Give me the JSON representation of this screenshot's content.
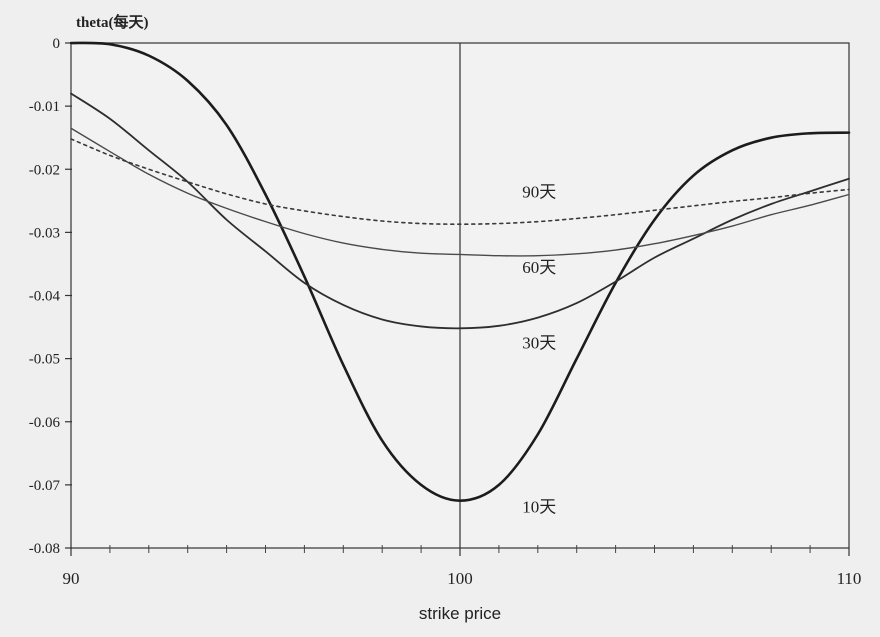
{
  "chart_data": {
    "type": "line",
    "title": "",
    "ylabel": "theta(每天)",
    "xlabel": "strike price",
    "xlim": [
      90,
      110
    ],
    "ylim": [
      -0.08,
      0
    ],
    "x_ticks": [
      90,
      100,
      110
    ],
    "x_tick_labels": [
      "90",
      "100",
      "110"
    ],
    "y_ticks": [
      0,
      -0.01,
      -0.02,
      -0.03,
      -0.04,
      -0.05,
      -0.06,
      -0.07,
      -0.08
    ],
    "y_tick_labels": [
      "0",
      "-0.01",
      "-0.02",
      "-0.03",
      "-0.04",
      "-0.05",
      "-0.06",
      "-0.07",
      "-0.08"
    ],
    "x_minor_step": 1,
    "grid": false,
    "vertical_reference_line": 100,
    "x": [
      90,
      91,
      92,
      93,
      94,
      95,
      96,
      97,
      98,
      99,
      100,
      101,
      102,
      103,
      104,
      105,
      106,
      107,
      108,
      109,
      110
    ],
    "series": [
      {
        "name": "10天",
        "style": "solid-heavy",
        "values": [
          0.0,
          -0.0002,
          -0.002,
          -0.006,
          -0.013,
          -0.024,
          -0.037,
          -0.051,
          -0.063,
          -0.07,
          -0.0725,
          -0.07,
          -0.062,
          -0.05,
          -0.038,
          -0.028,
          -0.021,
          -0.017,
          -0.015,
          -0.0143,
          -0.0142
        ]
      },
      {
        "name": "30天",
        "style": "solid",
        "values": [
          -0.008,
          -0.012,
          -0.017,
          -0.022,
          -0.028,
          -0.033,
          -0.038,
          -0.0415,
          -0.0438,
          -0.0449,
          -0.0452,
          -0.0448,
          -0.0435,
          -0.0412,
          -0.0378,
          -0.034,
          -0.031,
          -0.028,
          -0.0255,
          -0.0235,
          -0.0215
        ]
      },
      {
        "name": "60天",
        "style": "solid-light",
        "values": [
          -0.0135,
          -0.0172,
          -0.0208,
          -0.0238,
          -0.0262,
          -0.0283,
          -0.0302,
          -0.0317,
          -0.0327,
          -0.0333,
          -0.0335,
          -0.0337,
          -0.0337,
          -0.0334,
          -0.0328,
          -0.0318,
          -0.0305,
          -0.029,
          -0.0272,
          -0.0257,
          -0.024
        ]
      },
      {
        "name": "90天",
        "style": "dashed",
        "values": [
          -0.0152,
          -0.0178,
          -0.02,
          -0.022,
          -0.0239,
          -0.0255,
          -0.0266,
          -0.0275,
          -0.0282,
          -0.0286,
          -0.0287,
          -0.0286,
          -0.0283,
          -0.0278,
          -0.0272,
          -0.0265,
          -0.0258,
          -0.0251,
          -0.0245,
          -0.0238,
          -0.0232
        ]
      }
    ],
    "annotations": [
      {
        "text": "90天",
        "series": "90天",
        "x": 101.6,
        "y": -0.0245
      },
      {
        "text": "60天",
        "series": "60天",
        "x": 101.6,
        "y": -0.0364
      },
      {
        "text": "30天",
        "series": "30天",
        "x": 101.6,
        "y": -0.0484
      },
      {
        "text": "10天",
        "series": "10天",
        "x": 101.6,
        "y": -0.0744
      }
    ],
    "colors": {
      "background": "#efefef",
      "plot_background": "#f2f2f2",
      "axis": "#333333",
      "series_10": "#1c1c1c",
      "series_30": "#2e2e2e",
      "series_60": "#4a4a4a",
      "series_90": "#3a3a3a"
    }
  }
}
